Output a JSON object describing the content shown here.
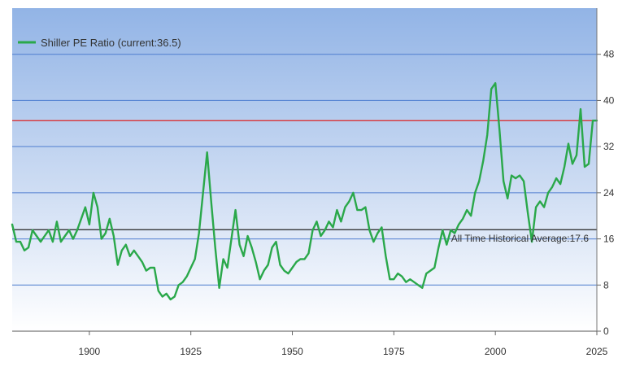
{
  "chart_data": {
    "type": "line",
    "title": "",
    "xlabel": "",
    "ylabel": "",
    "xlim": [
      1881,
      2025
    ],
    "ylim": [
      0,
      56
    ],
    "x_ticks": [
      1900,
      1925,
      1950,
      1975,
      2000,
      2025
    ],
    "y_ticks": [
      0,
      8,
      16,
      24,
      32,
      40,
      48
    ],
    "grid": "horizontal",
    "legend": {
      "position": "top-left",
      "label": "Shiller PE Ratio (current:36.5)"
    },
    "reference_lines": [
      {
        "name": "current",
        "value": 36.5,
        "color": "#dd2222"
      },
      {
        "name": "average",
        "value": 17.6,
        "color": "#222222",
        "label": "All Time Historical Average:17.6"
      }
    ],
    "series": [
      {
        "name": "Shiller PE Ratio",
        "color": "#2aa84a",
        "x": [
          1881,
          1882,
          1883,
          1884,
          1885,
          1886,
          1887,
          1888,
          1889,
          1890,
          1891,
          1892,
          1893,
          1894,
          1895,
          1896,
          1897,
          1898,
          1899,
          1900,
          1901,
          1902,
          1903,
          1904,
          1905,
          1906,
          1907,
          1908,
          1909,
          1910,
          1911,
          1912,
          1913,
          1914,
          1915,
          1916,
          1917,
          1918,
          1919,
          1920,
          1921,
          1922,
          1923,
          1924,
          1925,
          1926,
          1927,
          1928,
          1929,
          1930,
          1931,
          1932,
          1933,
          1934,
          1935,
          1936,
          1937,
          1938,
          1939,
          1940,
          1941,
          1942,
          1943,
          1944,
          1945,
          1946,
          1947,
          1948,
          1949,
          1950,
          1951,
          1952,
          1953,
          1954,
          1955,
          1956,
          1957,
          1958,
          1959,
          1960,
          1961,
          1962,
          1963,
          1964,
          1965,
          1966,
          1967,
          1968,
          1969,
          1970,
          1971,
          1972,
          1973,
          1974,
          1975,
          1976,
          1977,
          1978,
          1979,
          1980,
          1981,
          1982,
          1983,
          1984,
          1985,
          1986,
          1987,
          1988,
          1989,
          1990,
          1991,
          1992,
          1993,
          1994,
          1995,
          1996,
          1997,
          1998,
          1999,
          2000,
          2001,
          2002,
          2003,
          2004,
          2005,
          2006,
          2007,
          2008,
          2009,
          2010,
          2011,
          2012,
          2013,
          2014,
          2015,
          2016,
          2017,
          2018,
          2019,
          2020,
          2021,
          2022,
          2023,
          2024,
          2025
        ],
        "values": [
          18.5,
          15.5,
          15.5,
          14.0,
          14.5,
          17.5,
          16.5,
          15.5,
          16.5,
          17.5,
          15.5,
          19.0,
          15.5,
          16.5,
          17.5,
          16.0,
          17.5,
          19.5,
          21.5,
          18.5,
          24.0,
          21.5,
          16.0,
          17.0,
          19.5,
          16.5,
          11.5,
          14.0,
          15.0,
          13.0,
          14.0,
          13.0,
          12.0,
          10.5,
          11.0,
          11.0,
          7.0,
          6.0,
          6.5,
          5.5,
          6.0,
          8.0,
          8.5,
          9.5,
          11.0,
          12.5,
          17.0,
          24.0,
          31.0,
          22.5,
          14.5,
          7.5,
          12.5,
          11.0,
          16.0,
          21.0,
          15.0,
          13.0,
          16.5,
          14.5,
          12.0,
          9.0,
          10.5,
          11.5,
          14.5,
          15.5,
          11.5,
          10.5,
          10.0,
          11.0,
          12.0,
          12.5,
          12.5,
          13.5,
          17.5,
          19.0,
          16.5,
          17.5,
          19.0,
          18.0,
          21.0,
          19.0,
          21.5,
          22.5,
          24.0,
          21.0,
          21.0,
          21.5,
          17.5,
          15.5,
          17.0,
          18.0,
          13.0,
          9.0,
          9.0,
          10.0,
          9.5,
          8.5,
          9.0,
          8.5,
          8.0,
          7.5,
          10.0,
          10.5,
          11.0,
          14.5,
          17.5,
          15.0,
          17.5,
          17.0,
          18.5,
          19.5,
          21.0,
          20.0,
          24.0,
          26.0,
          29.5,
          34.0,
          42.0,
          43.0,
          35.0,
          26.0,
          23.0,
          27.0,
          26.5,
          27.0,
          26.0,
          20.5,
          15.5,
          21.5,
          22.5,
          21.5,
          24.0,
          25.0,
          26.5,
          25.5,
          28.5,
          32.5,
          29.0,
          30.5,
          38.5,
          28.5,
          29.0,
          36.5,
          36.5
        ]
      }
    ]
  }
}
